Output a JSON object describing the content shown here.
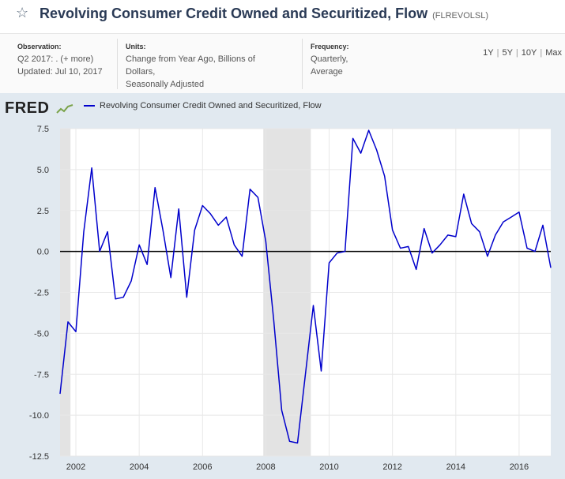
{
  "header": {
    "title": "Revolving Consumer Credit Owned and Securitized, Flow",
    "series_id": "(FLREVOLSL)"
  },
  "meta": {
    "observation_label": "Observation:",
    "observation_value": "Q2 2017: . (+ more)",
    "updated": "Updated: Jul 10, 2017",
    "units_label": "Units:",
    "units_line1": "Change from Year Ago, Billions of",
    "units_line2": "Dollars,",
    "units_line3": "Seasonally Adjusted",
    "frequency_label": "Frequency:",
    "frequency_line1": "Quarterly,",
    "frequency_line2": "Average"
  },
  "ranges": [
    "1Y",
    "5Y",
    "10Y",
    "Max"
  ],
  "logo": "FRED",
  "chart_data": {
    "type": "line",
    "series": [
      {
        "name": "Revolving Consumer Credit Owned and Securitized, Flow",
        "color": "#0000cc",
        "x": [
          2001.5,
          2001.75,
          2002.0,
          2002.25,
          2002.5,
          2002.75,
          2003.0,
          2003.25,
          2003.5,
          2003.75,
          2004.0,
          2004.25,
          2004.5,
          2004.75,
          2005.0,
          2005.25,
          2005.5,
          2005.75,
          2006.0,
          2006.25,
          2006.5,
          2006.75,
          2007.0,
          2007.25,
          2007.5,
          2007.75,
          2008.0,
          2008.25,
          2008.5,
          2008.75,
          2009.0,
          2009.25,
          2009.5,
          2009.75,
          2010.0,
          2010.25,
          2010.5,
          2010.75,
          2011.0,
          2011.25,
          2011.5,
          2011.75,
          2012.0,
          2012.25,
          2012.5,
          2012.75,
          2013.0,
          2013.25,
          2013.5,
          2013.75,
          2014.0,
          2014.25,
          2014.5,
          2014.75,
          2015.0,
          2015.25,
          2015.5,
          2015.75,
          2016.0,
          2016.25,
          2016.5,
          2016.75,
          2017.0
        ],
        "values": [
          -8.7,
          -4.3,
          -4.9,
          1.2,
          5.1,
          0.0,
          1.2,
          -2.9,
          -2.8,
          -1.8,
          0.4,
          -0.8,
          3.9,
          1.3,
          -1.6,
          2.6,
          -2.8,
          1.3,
          2.8,
          2.3,
          1.6,
          2.1,
          0.4,
          -0.3,
          3.8,
          3.3,
          0.6,
          -4.2,
          -9.7,
          -11.6,
          -11.7,
          -7.5,
          -3.3,
          -7.3,
          -0.7,
          -0.1,
          0.0,
          6.9,
          6.0,
          7.4,
          6.2,
          4.6,
          1.3,
          0.2,
          0.3,
          -1.1,
          1.4,
          -0.1,
          0.4,
          1.0,
          0.9,
          3.5,
          1.7,
          1.2,
          -0.3,
          1.0,
          1.8,
          2.1,
          2.4,
          0.2,
          0.0,
          1.6,
          -1.0
        ]
      }
    ],
    "recessions": [
      [
        2001.25,
        2001.83
      ],
      [
        2007.92,
        2009.42
      ]
    ],
    "x_ticks": [
      2002,
      2004,
      2006,
      2008,
      2010,
      2012,
      2014,
      2016
    ],
    "x_tick_labels": [
      "2002",
      "2004",
      "2006",
      "2008",
      "2010",
      "2012",
      "2014",
      "2016"
    ],
    "y_ticks": [
      7.5,
      5.0,
      2.5,
      0.0,
      -2.5,
      -5.0,
      -7.5,
      -10.0,
      -12.5
    ],
    "y_tick_labels": [
      "7.5",
      "5.0",
      "2.5",
      "0.0",
      "-2.5",
      "-5.0",
      "-7.5",
      "-10.0",
      "-12.5"
    ],
    "xlim": [
      2001.5,
      2017.0
    ],
    "ylim": [
      -12.5,
      7.5
    ],
    "grid": true,
    "zero_line": true,
    "legend_placement": "top-left"
  }
}
